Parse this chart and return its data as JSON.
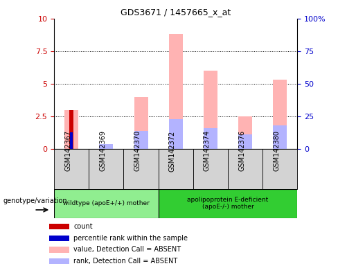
{
  "title": "GDS3671 / 1457665_x_at",
  "samples": [
    "GSM142367",
    "GSM142369",
    "GSM142370",
    "GSM142372",
    "GSM142374",
    "GSM142376",
    "GSM142380"
  ],
  "group_labels": [
    "wildtype (apoE+/+) mother",
    "apolipoprotein E-deficient\n(apoE-/-) mother"
  ],
  "group_sample_counts": [
    3,
    4
  ],
  "group_colors": [
    "#90ee90",
    "#32cd32"
  ],
  "count_values": [
    3.0,
    0.0,
    0.0,
    0.0,
    0.0,
    0.0,
    0.0
  ],
  "percentile_values": [
    1.3,
    0.0,
    0.0,
    0.0,
    0.0,
    0.0,
    0.0
  ],
  "value_absent": [
    3.0,
    0.4,
    4.0,
    8.8,
    6.0,
    2.5,
    5.3
  ],
  "rank_absent": [
    0.0,
    0.35,
    1.4,
    2.3,
    1.6,
    1.1,
    1.8
  ],
  "ylim": [
    0,
    10
  ],
  "y2lim": [
    0,
    100
  ],
  "yticks": [
    0,
    2.5,
    5.0,
    7.5,
    10
  ],
  "y2ticks": [
    0,
    25,
    50,
    75,
    100
  ],
  "color_count": "#cc0000",
  "color_percentile": "#0000cc",
  "color_value_absent": "#ffb3b3",
  "color_rank_absent": "#b3b3ff",
  "genotype_label": "genotype/variation",
  "legend_items": [
    {
      "label": "count",
      "color": "#cc0000"
    },
    {
      "label": "percentile rank within the sample",
      "color": "#0000cc"
    },
    {
      "label": "value, Detection Call = ABSENT",
      "color": "#ffb3b3"
    },
    {
      "label": "rank, Detection Call = ABSENT",
      "color": "#b3b3ff"
    }
  ]
}
